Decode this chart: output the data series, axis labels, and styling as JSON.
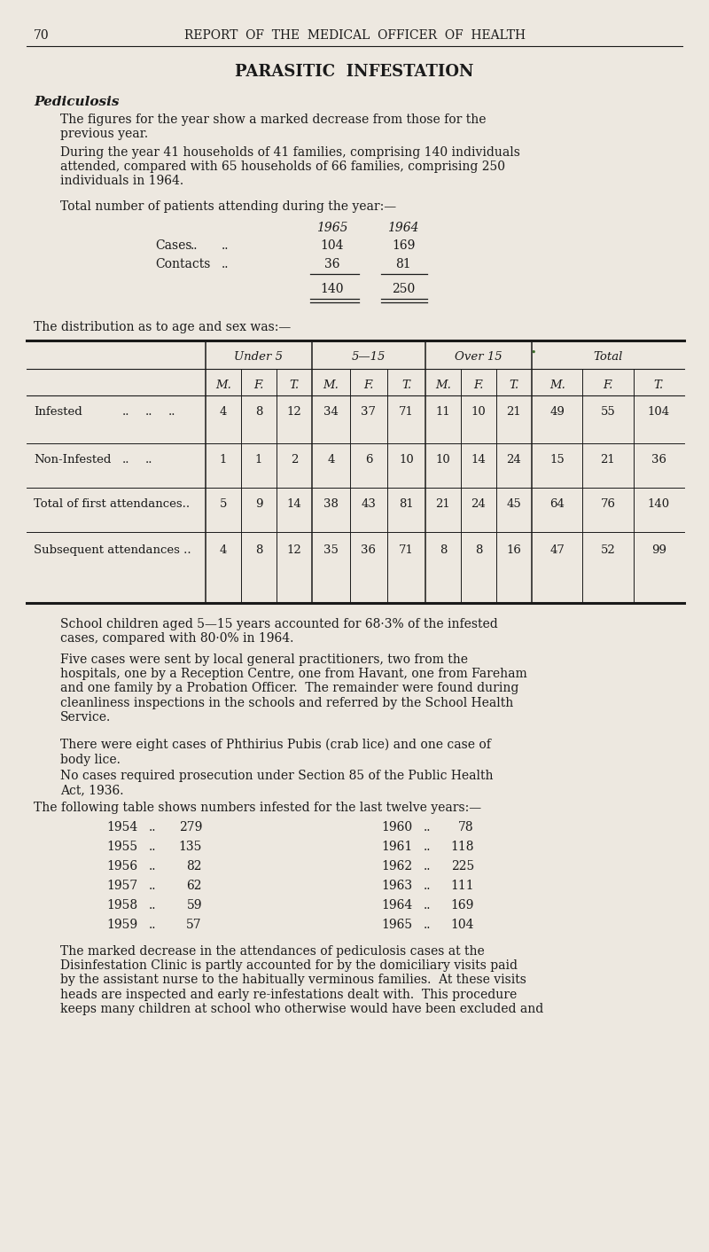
{
  "bg_color": "#ede8e0",
  "text_color": "#1a1a1a",
  "page_number": "70",
  "header": "REPORT  OF  THE  MEDICAL  OFFICER  OF  HEALTH",
  "section_title": "PARASITIC  INFESTATION",
  "subsection": "Pediculosis",
  "para1": "The figures for the year show a marked decrease from those for the\nprevious year.",
  "para2": "During the year 41 households of 41 families, comprising 140 individuals\nattended, compared with 65 households of 66 families, comprising 250\nindividuals in 1964.",
  "table1_header": "Total number of patients attending during the year:—",
  "para3": "School children aged 5—15 years accounted for 68·3% of the infested\ncases, compared with 80·0% in 1964.",
  "para4": "Five cases were sent by local general practitioners, two from the\nhospitals, one by a Reception Centre, one from Havant, one from Fareham\nand one family by a Probation Officer.  The remainder were found during\ncleanliness inspections in the schools and referred by the School Health\nService.",
  "para5": "There were eight cases of Phthirius Pubis (crab lice) and one case of\nbody lice.",
  "para6": "No cases required prosecution under Section 85 of the Public Health\nAct, 1936.",
  "table3_header": "The following table shows numbers infested for the last twelve years:—",
  "table3_data": [
    [
      "1954",
      "..",
      "279",
      "1960",
      "..",
      "78"
    ],
    [
      "1955",
      "..",
      "135",
      "1961",
      "..",
      "118"
    ],
    [
      "1956",
      "..",
      "82",
      "1962",
      "..",
      "225"
    ],
    [
      "1957",
      "..",
      "62",
      "1963",
      "..",
      "111"
    ],
    [
      "1958",
      "..",
      "59",
      "1964",
      "..",
      "169"
    ],
    [
      "1959",
      "..",
      "57",
      "1965",
      "..",
      "104"
    ]
  ],
  "para7": "The marked decrease in the attendances of pediculosis cases at the\nDisinfestation Clinic is partly accounted for by the domiciliary visits paid\nby the assistant nurse to the habitually verminous families.  At these visits\nheads are inspected and early re-infestations dealt with.  This procedure\nkeeps many children at school who otherwise would have been excluded and",
  "row_data": [
    [
      4,
      8,
      12,
      34,
      37,
      71,
      11,
      10,
      21,
      49,
      55,
      104
    ],
    [
      1,
      1,
      2,
      4,
      6,
      10,
      10,
      14,
      24,
      15,
      21,
      36
    ],
    [
      5,
      9,
      14,
      38,
      43,
      81,
      21,
      24,
      45,
      64,
      76,
      140
    ],
    [
      4,
      8,
      12,
      35,
      36,
      71,
      8,
      8,
      16,
      47,
      52,
      99
    ]
  ],
  "row_labels": [
    "Infested",
    "Non-Infested",
    "Total of first attendances..",
    "Subsequent attendances .."
  ],
  "row_dots": [
    ".. .. ..",
    ".. ..",
    "",
    ""
  ]
}
